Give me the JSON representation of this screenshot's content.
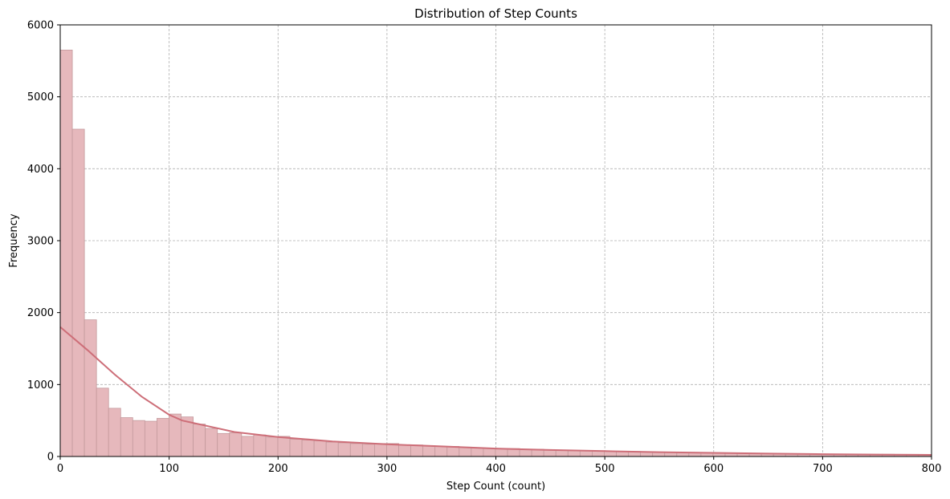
{
  "chart_data": {
    "type": "bar",
    "title": "Distribution of Step Counts",
    "xlabel": "Step Count (count)",
    "ylabel": "Frequency",
    "xlim": [
      0,
      800
    ],
    "ylim": [
      0,
      6000
    ],
    "x_ticks": [
      "0",
      "100",
      "200",
      "300",
      "400",
      "500",
      "600",
      "700",
      "800"
    ],
    "y_ticks": [
      "0",
      "1000",
      "2000",
      "3000",
      "4000",
      "5000",
      "6000"
    ],
    "grid": true,
    "bin_width": 11.1,
    "bins_start": [
      0,
      11.1,
      22.2,
      33.3,
      44.4,
      55.5,
      66.6,
      77.7,
      88.8,
      99.9,
      111,
      122.1,
      133.2,
      144.3,
      155.4,
      166.5,
      177.6,
      188.7,
      199.8,
      210.9,
      222,
      233.1,
      244.2,
      255.3,
      266.4,
      277.5,
      288.6,
      299.7,
      310.8,
      321.9,
      333,
      344.1,
      355.2,
      366.3,
      377.4,
      388.5,
      399.6,
      410.7,
      421.8,
      432.9,
      444,
      455.1,
      466.2,
      477.3,
      488.4,
      499.5,
      510.6,
      521.7,
      532.8,
      543.9,
      555,
      566.1,
      577.2,
      588.3,
      599.4,
      610.5,
      621.6,
      632.7,
      643.8,
      654.9,
      666,
      677.1,
      688.2,
      699.3,
      710.4,
      721.5,
      732.6,
      743.7,
      754.8,
      765.9,
      777,
      788.1
    ],
    "values": [
      5650,
      4550,
      1900,
      950,
      670,
      540,
      500,
      490,
      530,
      590,
      550,
      450,
      390,
      320,
      330,
      280,
      300,
      270,
      280,
      240,
      230,
      220,
      200,
      190,
      180,
      170,
      180,
      180,
      160,
      160,
      150,
      140,
      140,
      130,
      120,
      110,
      110,
      110,
      100,
      100,
      90,
      90,
      80,
      80,
      80,
      70,
      70,
      70,
      65,
      60,
      60,
      55,
      55,
      50,
      50,
      45,
      45,
      40,
      40,
      40,
      35,
      35,
      35,
      30,
      30,
      30,
      30,
      30,
      30,
      25,
      25,
      25
    ],
    "kde": {
      "x": [
        0,
        25,
        50,
        75,
        100,
        112,
        130,
        160,
        200,
        250,
        300,
        350,
        400,
        450,
        500,
        550,
        600,
        650,
        700,
        750,
        800
      ],
      "y": [
        1800,
        1480,
        1140,
        830,
        580,
        500,
        440,
        340,
        270,
        210,
        170,
        140,
        110,
        90,
        75,
        60,
        50,
        40,
        32,
        27,
        22
      ]
    },
    "colors": {
      "bar_fill": "#e6b8bc",
      "bar_edge": "#c49a9d",
      "kde_line": "#cd6e78"
    }
  }
}
